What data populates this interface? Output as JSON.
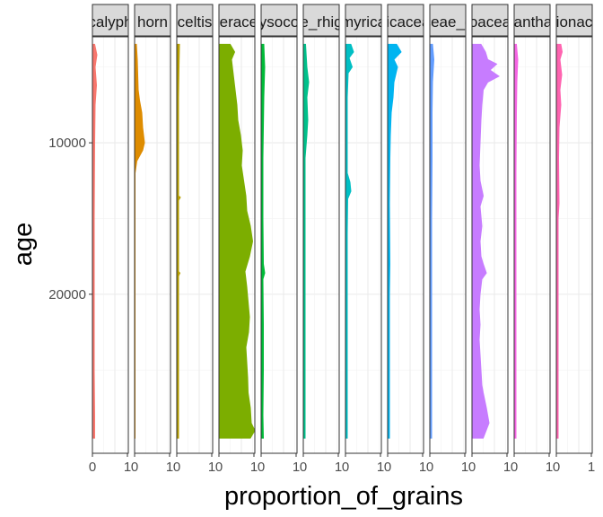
{
  "chart_data": {
    "type": "area",
    "xlabel": "proportion_of_grains",
    "ylabel": "age",
    "y_reversed": true,
    "ylim": [
      3000,
      30500
    ],
    "y_ticks": [
      10000,
      20000
    ],
    "y_tick_labels": [
      "10000",
      "20000"
    ],
    "x_tick_labels_first": [
      "0",
      "1"
    ],
    "x_tick_labels_rest": [
      "0",
      "1"
    ],
    "grid": "on",
    "colors": [
      "#F8766D",
      "#DE8C00",
      "#B79F00",
      "#7CAE00",
      "#00BA38",
      "#00C08B",
      "#00BFC4",
      "#00B4F0",
      "#619CFF",
      "#C77CFF",
      "#F564E3",
      "#FF64B0"
    ],
    "panels": [
      {
        "label": "calyph",
        "color": "#F8766D",
        "xlim": [
          0,
          0.8
        ],
        "profile": [
          [
            3500,
            0.05
          ],
          [
            4200,
            0.1
          ],
          [
            5000,
            0.06
          ],
          [
            6200,
            0.09
          ],
          [
            7500,
            0.06
          ],
          [
            10000,
            0.05
          ],
          [
            15000,
            0.04
          ],
          [
            20000,
            0.04
          ],
          [
            25000,
            0.04
          ],
          [
            28000,
            0.05
          ],
          [
            29500,
            0.05
          ]
        ]
      },
      {
        "label": "horn",
        "color": "#DE8C00",
        "xlim": [
          0,
          0.8
        ],
        "profile": [
          [
            3500,
            0.04
          ],
          [
            4500,
            0.06
          ],
          [
            5500,
            0.07
          ],
          [
            6500,
            0.08
          ],
          [
            7200,
            0.11
          ],
          [
            8000,
            0.16
          ],
          [
            9000,
            0.18
          ],
          [
            10000,
            0.22
          ],
          [
            10500,
            0.18
          ],
          [
            11200,
            0.05
          ],
          [
            12000,
            0.01
          ],
          [
            29500,
            0.01
          ]
        ]
      },
      {
        "label": "celtis",
        "color": "#B79F00",
        "xlim": [
          0,
          0.8
        ],
        "profile": [
          [
            3500,
            0.06
          ],
          [
            5000,
            0.05
          ],
          [
            7000,
            0.04
          ],
          [
            10000,
            0.04
          ],
          [
            13500,
            0.04
          ],
          [
            13600,
            0.08
          ],
          [
            13800,
            0.04
          ],
          [
            18500,
            0.04
          ],
          [
            18600,
            0.07
          ],
          [
            18800,
            0.04
          ],
          [
            29500,
            0.04
          ]
        ]
      },
      {
        "label": "asteraceae",
        "color": "#7CAE00",
        "xlim": [
          0,
          0.8
        ],
        "profile": [
          [
            3500,
            0.25
          ],
          [
            4000,
            0.35
          ],
          [
            4500,
            0.28
          ],
          [
            5500,
            0.32
          ],
          [
            6500,
            0.36
          ],
          [
            7500,
            0.4
          ],
          [
            8500,
            0.42
          ],
          [
            9500,
            0.48
          ],
          [
            10500,
            0.52
          ],
          [
            11500,
            0.5
          ],
          [
            12500,
            0.55
          ],
          [
            13500,
            0.6
          ],
          [
            14500,
            0.62
          ],
          [
            15500,
            0.7
          ],
          [
            16500,
            0.75
          ],
          [
            17500,
            0.68
          ],
          [
            18500,
            0.58
          ],
          [
            19500,
            0.62
          ],
          [
            20500,
            0.65
          ],
          [
            21500,
            0.68
          ],
          [
            22500,
            0.66
          ],
          [
            23500,
            0.6
          ],
          [
            24500,
            0.62
          ],
          [
            25500,
            0.64
          ],
          [
            26500,
            0.65
          ],
          [
            27500,
            0.7
          ],
          [
            28500,
            0.72
          ],
          [
            29000,
            0.8
          ],
          [
            29500,
            0.7
          ]
        ]
      },
      {
        "label": "chrysocoma",
        "color": "#00BA38",
        "xlim": [
          0,
          0.8
        ],
        "profile": [
          [
            3500,
            0.06
          ],
          [
            5000,
            0.08
          ],
          [
            7000,
            0.06
          ],
          [
            9000,
            0.05
          ],
          [
            11000,
            0.04
          ],
          [
            13000,
            0.04
          ],
          [
            15000,
            0.04
          ],
          [
            18000,
            0.05
          ],
          [
            18600,
            0.08
          ],
          [
            19000,
            0.04
          ],
          [
            22000,
            0.05
          ],
          [
            25000,
            0.05
          ],
          [
            28000,
            0.04
          ],
          [
            29500,
            0.05
          ]
        ]
      },
      {
        "label": "stoebe_rhigozum",
        "color": "#00C08B",
        "xlim": [
          0,
          0.8
        ],
        "profile": [
          [
            3500,
            0.05
          ],
          [
            5000,
            0.08
          ],
          [
            6000,
            0.12
          ],
          [
            7000,
            0.08
          ],
          [
            8500,
            0.1
          ],
          [
            9500,
            0.08
          ],
          [
            11000,
            0.04
          ],
          [
            15000,
            0.04
          ],
          [
            20000,
            0.04
          ],
          [
            25000,
            0.04
          ],
          [
            29500,
            0.04
          ]
        ]
      },
      {
        "label": "myrica",
        "color": "#00BFC4",
        "xlim": [
          0,
          0.8
        ],
        "profile": [
          [
            3500,
            0.12
          ],
          [
            4000,
            0.18
          ],
          [
            4400,
            0.08
          ],
          [
            5000,
            0.15
          ],
          [
            5400,
            0.06
          ],
          [
            7000,
            0.04
          ],
          [
            10000,
            0.04
          ],
          [
            12000,
            0.04
          ],
          [
            12600,
            0.1
          ],
          [
            13200,
            0.12
          ],
          [
            13700,
            0.05
          ],
          [
            16000,
            0.04
          ],
          [
            22000,
            0.04
          ],
          [
            29500,
            0.04
          ]
        ]
      },
      {
        "label": "ericaceae",
        "color": "#00B4F0",
        "xlim": [
          0,
          0.8
        ],
        "profile": [
          [
            3500,
            0.2
          ],
          [
            4000,
            0.3
          ],
          [
            4500,
            0.14
          ],
          [
            5000,
            0.22
          ],
          [
            6000,
            0.14
          ],
          [
            7000,
            0.12
          ],
          [
            8000,
            0.08
          ],
          [
            9500,
            0.06
          ],
          [
            11000,
            0.05
          ],
          [
            14000,
            0.04
          ],
          [
            18000,
            0.05
          ],
          [
            20000,
            0.04
          ],
          [
            25000,
            0.04
          ],
          [
            29500,
            0.04
          ]
        ]
      },
      {
        "label": "poaceae_cape",
        "color": "#619CFF",
        "xlim": [
          0,
          0.8
        ],
        "profile": [
          [
            3500,
            0.06
          ],
          [
            4500,
            0.09
          ],
          [
            6000,
            0.06
          ],
          [
            8000,
            0.05
          ],
          [
            11000,
            0.05
          ],
          [
            15000,
            0.04
          ],
          [
            20000,
            0.04
          ],
          [
            25000,
            0.04
          ],
          [
            29500,
            0.04
          ]
        ]
      },
      {
        "label": "poaceae",
        "color": "#C77CFF",
        "xlim": [
          0,
          0.8
        ],
        "profile": [
          [
            3500,
            0.2
          ],
          [
            4000,
            0.3
          ],
          [
            4500,
            0.35
          ],
          [
            4800,
            0.55
          ],
          [
            5200,
            0.4
          ],
          [
            5600,
            0.6
          ],
          [
            6000,
            0.35
          ],
          [
            6500,
            0.25
          ],
          [
            7500,
            0.22
          ],
          [
            8500,
            0.2
          ],
          [
            10000,
            0.18
          ],
          [
            11500,
            0.16
          ],
          [
            12500,
            0.18
          ],
          [
            13500,
            0.25
          ],
          [
            14200,
            0.18
          ],
          [
            15500,
            0.22
          ],
          [
            16500,
            0.18
          ],
          [
            17500,
            0.2
          ],
          [
            18000,
            0.25
          ],
          [
            18600,
            0.32
          ],
          [
            19000,
            0.22
          ],
          [
            20000,
            0.18
          ],
          [
            21000,
            0.16
          ],
          [
            22000,
            0.18
          ],
          [
            23000,
            0.16
          ],
          [
            24000,
            0.18
          ],
          [
            25000,
            0.2
          ],
          [
            26000,
            0.22
          ],
          [
            26500,
            0.25
          ],
          [
            27500,
            0.32
          ],
          [
            28500,
            0.38
          ],
          [
            29500,
            0.25
          ]
        ]
      },
      {
        "label": "amaranthaceae",
        "color": "#F564E3",
        "xlim": [
          0,
          0.8
        ],
        "profile": [
          [
            3500,
            0.05
          ],
          [
            4500,
            0.08
          ],
          [
            6000,
            0.06
          ],
          [
            8000,
            0.05
          ],
          [
            12000,
            0.04
          ],
          [
            15000,
            0.04
          ],
          [
            20000,
            0.04
          ],
          [
            25000,
            0.04
          ],
          [
            29500,
            0.04
          ]
        ]
      },
      {
        "label": "restionaceae",
        "color": "#FF64B0",
        "xlim": [
          0,
          0.8
        ],
        "profile": [
          [
            3500,
            0.1
          ],
          [
            4000,
            0.13
          ],
          [
            4500,
            0.08
          ],
          [
            5500,
            0.12
          ],
          [
            6500,
            0.08
          ],
          [
            7500,
            0.1
          ],
          [
            9000,
            0.06
          ],
          [
            11000,
            0.05
          ],
          [
            14000,
            0.06
          ],
          [
            15000,
            0.04
          ],
          [
            20000,
            0.04
          ],
          [
            25000,
            0.04
          ],
          [
            29500,
            0.04
          ]
        ]
      }
    ]
  }
}
